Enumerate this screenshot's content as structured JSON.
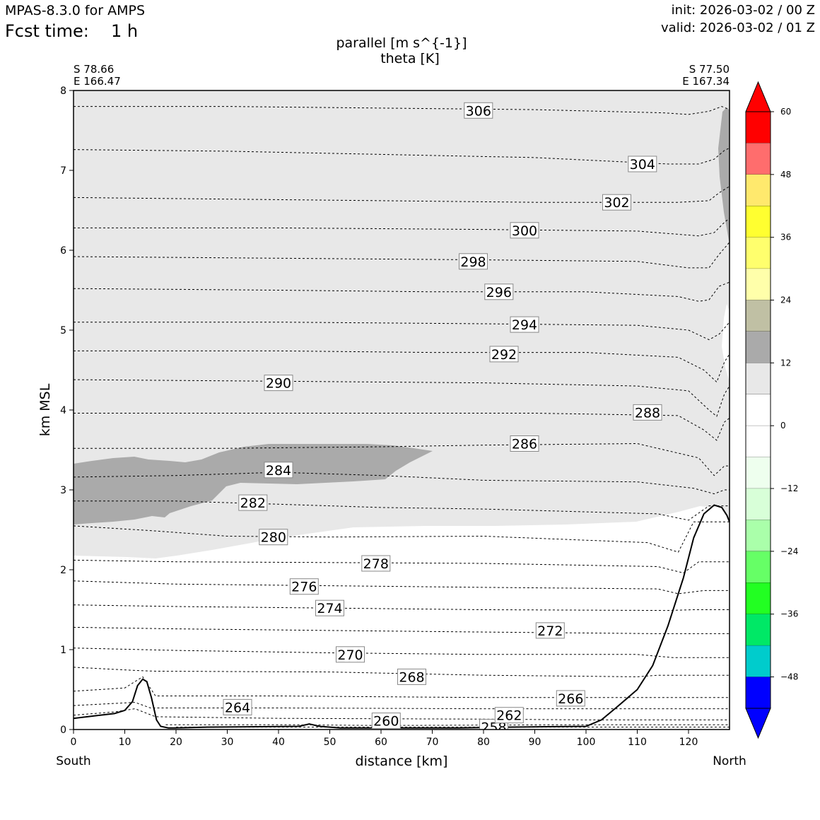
{
  "header": {
    "model": "MPAS-8.3.0 for AMPS",
    "fcst_label": "Fcst time:",
    "fcst_value": "1 h",
    "init": "init: 2026-03-02 / 00 Z",
    "valid": "valid: 2026-03-02 / 01 Z"
  },
  "chart_data": {
    "type": "cross-section",
    "title": "parallel [m s^{-1}]",
    "subtitle": "theta [K]",
    "xlabel": "distance [km]",
    "ylabel": "km MSL",
    "xlim": [
      0,
      128
    ],
    "ylim": [
      0,
      8
    ],
    "xticks": [
      0,
      10,
      20,
      30,
      40,
      50,
      60,
      70,
      80,
      90,
      100,
      110,
      120
    ],
    "yticks": [
      0,
      1,
      2,
      3,
      4,
      5,
      6,
      7,
      8
    ],
    "start_point": {
      "lat": "S 78.66",
      "lon": "E 166.47"
    },
    "end_point": {
      "lat": "S 77.50",
      "lon": "E 167.34"
    },
    "left_end_label": "South",
    "right_end_label": "North",
    "terrain": [
      [
        0,
        0.14
      ],
      [
        4,
        0.17
      ],
      [
        8,
        0.2
      ],
      [
        10,
        0.24
      ],
      [
        11.5,
        0.35
      ],
      [
        12.5,
        0.55
      ],
      [
        13.5,
        0.63
      ],
      [
        14.3,
        0.6
      ],
      [
        15.2,
        0.4
      ],
      [
        16.2,
        0.12
      ],
      [
        17,
        0.04
      ],
      [
        18.5,
        0.02
      ],
      [
        20,
        0.02
      ],
      [
        26,
        0.03
      ],
      [
        44,
        0.04
      ],
      [
        46,
        0.07
      ],
      [
        48,
        0.04
      ],
      [
        52,
        0.02
      ],
      [
        60,
        0.02
      ],
      [
        75,
        0.02
      ],
      [
        85,
        0.03
      ],
      [
        100,
        0.04
      ],
      [
        103,
        0.12
      ],
      [
        106,
        0.28
      ],
      [
        110,
        0.5
      ],
      [
        113,
        0.8
      ],
      [
        116,
        1.3
      ],
      [
        119,
        1.9
      ],
      [
        121,
        2.4
      ],
      [
        123,
        2.7
      ],
      [
        125,
        2.81
      ],
      [
        126.5,
        2.78
      ],
      [
        127.5,
        2.68
      ],
      [
        128,
        2.6
      ]
    ],
    "shading": {
      "light_gray_8_to_12": "#e8e8e8",
      "dark_gray_12_to_18": "#aaaaaa"
    },
    "colorbar": {
      "ticks": [
        60,
        48,
        36,
        24,
        12,
        0,
        -12,
        -24,
        -36,
        -48
      ],
      "tick_labels": [
        "60",
        "48",
        "36",
        "24",
        "12",
        "0",
        "−12",
        "−24",
        "−36",
        "−48"
      ],
      "levels": [
        60,
        54,
        48,
        42,
        36,
        30,
        24,
        18,
        12,
        6,
        0,
        -6,
        -12,
        -18,
        -24,
        -30,
        -36,
        -42,
        -48,
        -54
      ],
      "colors": [
        "#ff0000",
        "#ff6d6d",
        "#ffe96d",
        "#ffff30",
        "#ffff6d",
        "#ffffaa",
        "#c0c0a4",
        "#aaaaaa",
        "#e8e8e8",
        "#ffffff",
        "#ffffff",
        "#eeffee",
        "#d8ffd8",
        "#aaffaa",
        "#66ff66",
        "#22ff22",
        "#00e866",
        "#00cccc",
        "#0000ff"
      ],
      "extend_max_color": "#ff0000",
      "extend_min_color": "#0000ff"
    },
    "theta_contours": [
      {
        "value": 258,
        "label": "258",
        "pts": [
          [
            20,
            0.03
          ],
          [
            128,
            0.03
          ]
        ],
        "label_at": [
          82,
          0.03
        ]
      },
      {
        "value": 260,
        "label": "260",
        "pts": [
          [
            18,
            0.06
          ],
          [
            40,
            0.06
          ],
          [
            60,
            0.05
          ],
          [
            100,
            0.06
          ],
          [
            128,
            0.06
          ]
        ],
        "label_at": [
          61,
          0.11
        ]
      },
      {
        "value": 262,
        "label": "262",
        "pts": [
          [
            0,
            0.18
          ],
          [
            8,
            0.22
          ],
          [
            12,
            0.26
          ],
          [
            16,
            0.16
          ],
          [
            40,
            0.14
          ],
          [
            80,
            0.13
          ],
          [
            101,
            0.12
          ],
          [
            128,
            0.12
          ]
        ],
        "label_at": [
          85,
          0.18
        ]
      },
      {
        "value": 264,
        "label": "264",
        "pts": [
          [
            0,
            0.3
          ],
          [
            12,
            0.34
          ],
          [
            15,
            0.27
          ],
          [
            40,
            0.27
          ],
          [
            80,
            0.26
          ],
          [
            104,
            0.26
          ],
          [
            128,
            0.26
          ]
        ],
        "label_at": [
          32,
          0.28
        ]
      },
      {
        "value": 266,
        "label": "266",
        "pts": [
          [
            0,
            0.48
          ],
          [
            10,
            0.52
          ],
          [
            13.5,
            0.66
          ],
          [
            16,
            0.42
          ],
          [
            40,
            0.42
          ],
          [
            80,
            0.4
          ],
          [
            108,
            0.4
          ],
          [
            128,
            0.4
          ]
        ],
        "label_at": [
          97,
          0.39
        ]
      },
      {
        "value": 268,
        "label": "268",
        "pts": [
          [
            0,
            0.78
          ],
          [
            12,
            0.74
          ],
          [
            16,
            0.73
          ],
          [
            50,
            0.72
          ],
          [
            80,
            0.68
          ],
          [
            110,
            0.66
          ],
          [
            114,
            0.68
          ],
          [
            128,
            0.68
          ]
        ],
        "label_at": [
          66,
          0.66
        ]
      },
      {
        "value": 270,
        "label": "270",
        "pts": [
          [
            0,
            1.02
          ],
          [
            20,
            0.99
          ],
          [
            50,
            0.96
          ],
          [
            80,
            0.94
          ],
          [
            110,
            0.94
          ],
          [
            117,
            0.9
          ],
          [
            128,
            0.9
          ]
        ],
        "label_at": [
          54,
          0.94
        ]
      },
      {
        "value": 272,
        "label": "272",
        "pts": [
          [
            0,
            1.28
          ],
          [
            20,
            1.26
          ],
          [
            50,
            1.24
          ],
          [
            80,
            1.22
          ],
          [
            114,
            1.2
          ],
          [
            119,
            1.2
          ],
          [
            128,
            1.2
          ]
        ],
        "label_at": [
          93,
          1.24
        ]
      },
      {
        "value": 274,
        "label": "274",
        "pts": [
          [
            0,
            1.56
          ],
          [
            20,
            1.54
          ],
          [
            50,
            1.52
          ],
          [
            80,
            1.5
          ],
          [
            116,
            1.49
          ],
          [
            121,
            1.5
          ],
          [
            128,
            1.5
          ]
        ],
        "label_at": [
          50,
          1.52
        ]
      },
      {
        "value": 276,
        "label": "276",
        "pts": [
          [
            0,
            1.86
          ],
          [
            20,
            1.82
          ],
          [
            50,
            1.8
          ],
          [
            80,
            1.78
          ],
          [
            114,
            1.76
          ],
          [
            118,
            1.7
          ],
          [
            123,
            1.74
          ],
          [
            128,
            1.74
          ]
        ],
        "label_at": [
          45,
          1.79
        ]
      },
      {
        "value": 278,
        "label": "278",
        "pts": [
          [
            0,
            2.12
          ],
          [
            20,
            2.1
          ],
          [
            50,
            2.09
          ],
          [
            80,
            2.08
          ],
          [
            114,
            2.04
          ],
          [
            119,
            1.96
          ],
          [
            122,
            2.1
          ],
          [
            128,
            2.1
          ]
        ],
        "label_at": [
          59,
          2.08
        ]
      },
      {
        "value": 280,
        "label": "280",
        "pts": [
          [
            0,
            2.55
          ],
          [
            15,
            2.49
          ],
          [
            30,
            2.42
          ],
          [
            50,
            2.41
          ],
          [
            80,
            2.42
          ],
          [
            112,
            2.34
          ],
          [
            118,
            2.22
          ],
          [
            121,
            2.6
          ],
          [
            128,
            2.6
          ]
        ],
        "label_at": [
          39,
          2.41
        ]
      },
      {
        "value": 282,
        "label": "282",
        "pts": [
          [
            0,
            2.86
          ],
          [
            20,
            2.86
          ],
          [
            40,
            2.82
          ],
          [
            60,
            2.78
          ],
          [
            80,
            2.76
          ],
          [
            114,
            2.7
          ],
          [
            120,
            2.62
          ],
          [
            124,
            2.8
          ],
          [
            128,
            2.8
          ]
        ],
        "label_at": [
          35,
          2.84
        ]
      },
      {
        "value": 284,
        "label": "284",
        "pts": [
          [
            0,
            3.16
          ],
          [
            20,
            3.18
          ],
          [
            40,
            3.22
          ],
          [
            60,
            3.18
          ],
          [
            80,
            3.12
          ],
          [
            110,
            3.1
          ],
          [
            121,
            3.02
          ],
          [
            125,
            2.95
          ],
          [
            127,
            3.0
          ],
          [
            128,
            3.0
          ]
        ],
        "label_at": [
          40,
          3.25
        ]
      },
      {
        "value": 286,
        "label": "286",
        "pts": [
          [
            0,
            3.52
          ],
          [
            30,
            3.52
          ],
          [
            60,
            3.54
          ],
          [
            80,
            3.56
          ],
          [
            110,
            3.58
          ],
          [
            122,
            3.4
          ],
          [
            125,
            3.18
          ],
          [
            127,
            3.3
          ],
          [
            128,
            3.3
          ]
        ],
        "label_at": [
          88,
          3.58
        ]
      },
      {
        "value": 288,
        "label": "288",
        "pts": [
          [
            0,
            3.96
          ],
          [
            30,
            3.96
          ],
          [
            60,
            3.96
          ],
          [
            90,
            3.96
          ],
          [
            118,
            3.93
          ],
          [
            123,
            3.75
          ],
          [
            125.5,
            3.62
          ],
          [
            127,
            3.85
          ],
          [
            128,
            3.9
          ]
        ],
        "label_at": [
          112,
          3.97
        ]
      },
      {
        "value": 290,
        "label": "290",
        "pts": [
          [
            0,
            4.38
          ],
          [
            40,
            4.36
          ],
          [
            80,
            4.34
          ],
          [
            110,
            4.3
          ],
          [
            120,
            4.24
          ],
          [
            124,
            4.0
          ],
          [
            125.5,
            3.92
          ],
          [
            127,
            4.2
          ],
          [
            128,
            4.3
          ]
        ],
        "label_at": [
          40,
          4.34
        ]
      },
      {
        "value": 292,
        "label": "292",
        "pts": [
          [
            0,
            4.74
          ],
          [
            40,
            4.74
          ],
          [
            70,
            4.72
          ],
          [
            100,
            4.72
          ],
          [
            118,
            4.66
          ],
          [
            123,
            4.5
          ],
          [
            125.5,
            4.35
          ],
          [
            127,
            4.6
          ],
          [
            128,
            4.7
          ]
        ],
        "label_at": [
          84,
          4.7
        ]
      },
      {
        "value": 294,
        "label": "294",
        "pts": [
          [
            0,
            5.1
          ],
          [
            40,
            5.1
          ],
          [
            80,
            5.08
          ],
          [
            110,
            5.06
          ],
          [
            120,
            5.0
          ],
          [
            124,
            4.88
          ],
          [
            126,
            4.95
          ],
          [
            128,
            5.1
          ]
        ],
        "label_at": [
          88,
          5.07
        ]
      },
      {
        "value": 296,
        "label": "296",
        "pts": [
          [
            0,
            5.52
          ],
          [
            40,
            5.5
          ],
          [
            70,
            5.48
          ],
          [
            100,
            5.48
          ],
          [
            118,
            5.42
          ],
          [
            122,
            5.36
          ],
          [
            124,
            5.38
          ],
          [
            126,
            5.55
          ],
          [
            128,
            5.6
          ]
        ],
        "label_at": [
          83,
          5.48
        ]
      },
      {
        "value": 298,
        "label": "298",
        "pts": [
          [
            0,
            5.92
          ],
          [
            40,
            5.9
          ],
          [
            80,
            5.88
          ],
          [
            110,
            5.86
          ],
          [
            120,
            5.78
          ],
          [
            124,
            5.78
          ],
          [
            126,
            5.95
          ],
          [
            128,
            6.1
          ]
        ],
        "label_at": [
          78,
          5.86
        ]
      },
      {
        "value": 300,
        "label": "300",
        "pts": [
          [
            0,
            6.28
          ],
          [
            40,
            6.28
          ],
          [
            80,
            6.26
          ],
          [
            110,
            6.24
          ],
          [
            122,
            6.18
          ],
          [
            125,
            6.22
          ],
          [
            127,
            6.35
          ],
          [
            128,
            6.4
          ]
        ],
        "label_at": [
          88,
          6.25
        ]
      },
      {
        "value": 302,
        "label": "302",
        "pts": [
          [
            0,
            6.66
          ],
          [
            30,
            6.64
          ],
          [
            60,
            6.62
          ],
          [
            90,
            6.6
          ],
          [
            118,
            6.6
          ],
          [
            124,
            6.62
          ],
          [
            126,
            6.72
          ],
          [
            128,
            6.8
          ]
        ],
        "label_at": [
          106,
          6.6
        ]
      },
      {
        "value": 304,
        "label": "304",
        "pts": [
          [
            0,
            7.26
          ],
          [
            30,
            7.24
          ],
          [
            60,
            7.2
          ],
          [
            90,
            7.16
          ],
          [
            116,
            7.08
          ],
          [
            122,
            7.08
          ],
          [
            125,
            7.14
          ],
          [
            127,
            7.25
          ],
          [
            128,
            7.28
          ]
        ],
        "label_at": [
          111,
          7.08
        ]
      },
      {
        "value": 306,
        "label": "306",
        "pts": [
          [
            0,
            7.8
          ],
          [
            30,
            7.8
          ],
          [
            60,
            7.78
          ],
          [
            90,
            7.76
          ],
          [
            115,
            7.72
          ],
          [
            120,
            7.7
          ],
          [
            124,
            7.74
          ],
          [
            126.5,
            7.8
          ],
          [
            128,
            7.76
          ]
        ],
        "label_at": [
          79,
          7.75
        ]
      }
    ]
  }
}
